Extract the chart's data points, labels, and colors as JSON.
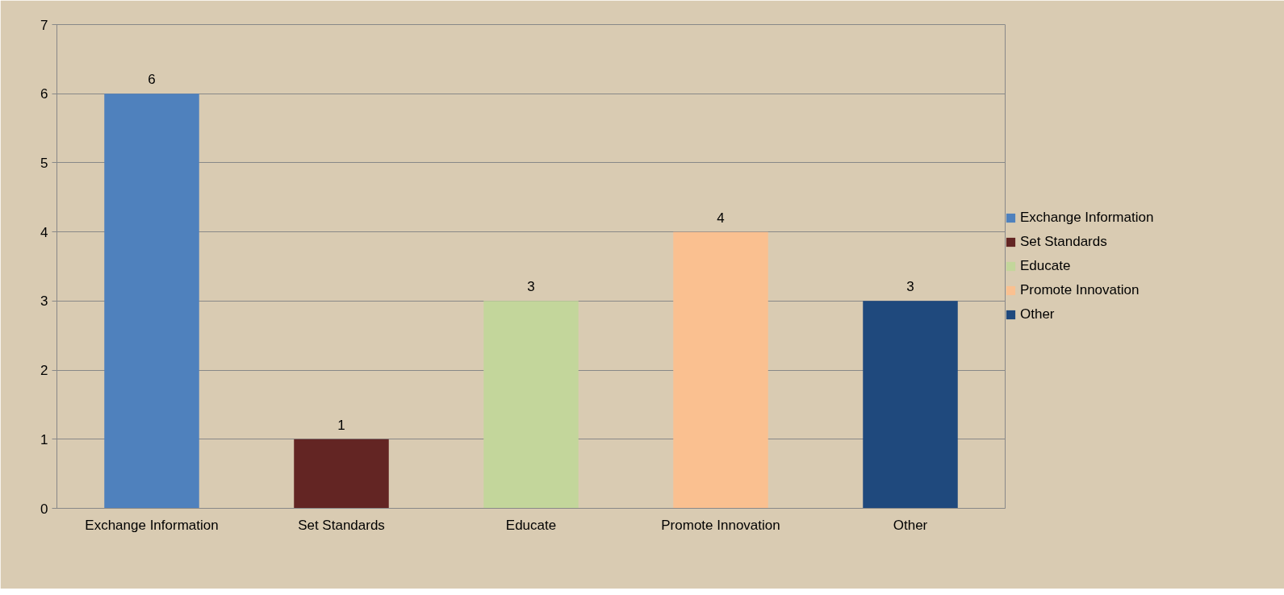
{
  "chart_data": {
    "type": "bar",
    "categories": [
      "Exchange Information",
      "Set Standards",
      "Educate",
      "Promote Innovation",
      "Other"
    ],
    "series": [
      {
        "name": "Exchange Information",
        "color": "#4f81bd",
        "values": [
          6,
          null,
          null,
          null,
          null
        ]
      },
      {
        "name": "Set Standards",
        "color": "#632523",
        "values": [
          null,
          1,
          null,
          null,
          null
        ]
      },
      {
        "name": "Educate",
        "color": "#c3d69b",
        "values": [
          null,
          null,
          3,
          null,
          null
        ]
      },
      {
        "name": "Promote Innovation",
        "color": "#fac090",
        "values": [
          null,
          null,
          null,
          4,
          null
        ]
      },
      {
        "name": "Other",
        "color": "#1f497d",
        "values": [
          null,
          null,
          null,
          null,
          3
        ]
      }
    ],
    "ylim": [
      0,
      7
    ],
    "yticks": [
      0,
      1,
      2,
      3,
      4,
      5,
      6,
      7
    ],
    "grid": "y",
    "legend": "right",
    "data_labels": true
  }
}
